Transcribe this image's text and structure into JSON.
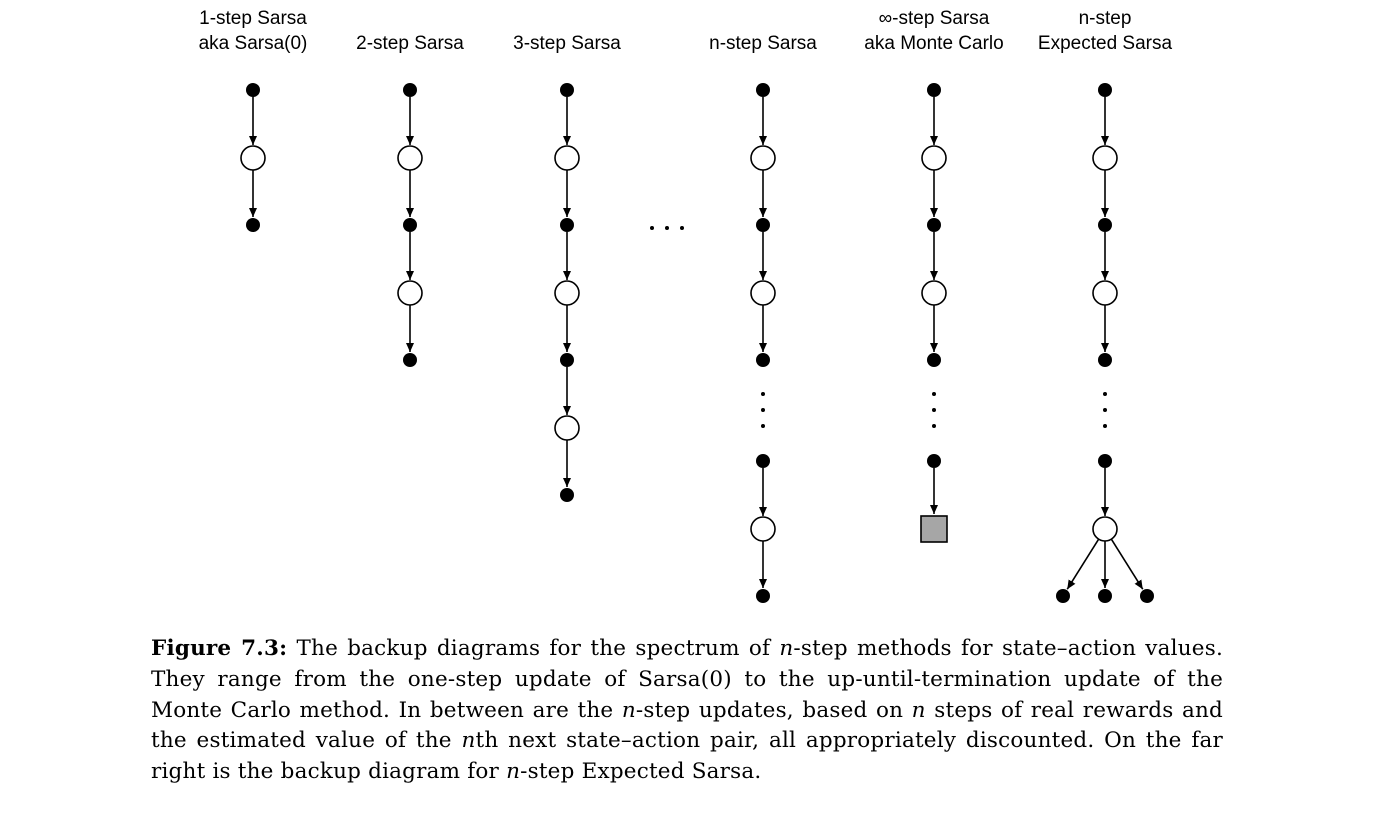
{
  "colors": {
    "ink": "#000000",
    "paper": "#ffffff",
    "terminal_fill": "#a6a6a6"
  },
  "columns": [
    {
      "title_lines": [
        "1-step Sarsa",
        "aka Sarsa(0)"
      ],
      "sequence": [
        "action",
        "state",
        "action"
      ],
      "ending": "none"
    },
    {
      "title_lines": [
        "2-step Sarsa"
      ],
      "sequence": [
        "action",
        "state",
        "action",
        "state",
        "action"
      ],
      "ending": "none"
    },
    {
      "title_lines": [
        "3-step Sarsa"
      ],
      "sequence": [
        "action",
        "state",
        "action",
        "state",
        "action",
        "state",
        "action"
      ],
      "ending": "none"
    },
    {
      "title_lines": [
        "n-step Sarsa"
      ],
      "sequence": [
        "action",
        "state",
        "action",
        "state",
        "action",
        "ellipsis",
        "action",
        "state",
        "action"
      ],
      "ending": "none"
    },
    {
      "title_lines": [
        "∞-step Sarsa",
        "aka Monte Carlo"
      ],
      "sequence": [
        "action",
        "state",
        "action",
        "state",
        "action",
        "ellipsis",
        "action",
        "terminal"
      ],
      "ending": "terminal"
    },
    {
      "title_lines": [
        "n-step",
        "Expected Sarsa"
      ],
      "sequence": [
        "action",
        "state",
        "action",
        "state",
        "action",
        "ellipsis",
        "action",
        "state"
      ],
      "ending": "fan-3-actions"
    }
  ],
  "between_columns_ellipsis": "…",
  "caption": {
    "label": "Figure 7.3:",
    "body_parts": [
      {
        "t": " The backup diagrams for the spectrum of "
      },
      {
        "t": "n",
        "i": true
      },
      {
        "t": "-step methods for state–action values. They range from the one-step update of Sarsa(0) to the up-until-termination update of the Monte Carlo method. In between are the "
      },
      {
        "t": "n",
        "i": true
      },
      {
        "t": "-step updates, based on "
      },
      {
        "t": "n",
        "i": true
      },
      {
        "t": " steps of real rewards and the estimated value of the "
      },
      {
        "t": "n",
        "i": true
      },
      {
        "t": "th next state–action pair, all appropriately discounted. On the far right is the backup diagram for "
      },
      {
        "t": "n",
        "i": true
      },
      {
        "t": "-step Expected Sarsa."
      }
    ]
  }
}
